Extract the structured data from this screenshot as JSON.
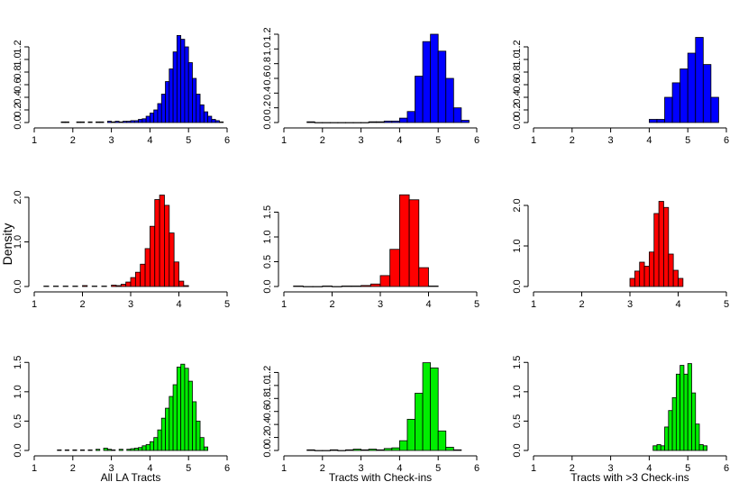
{
  "figure": {
    "ylabel": "Density",
    "column_xlabels": [
      "All LA Tracts",
      "Tracts with Check-ins",
      "Tracts with >3 Check-ins"
    ]
  },
  "chart_data": [
    {
      "type": "bar",
      "row": 1,
      "col": 1,
      "color": "#0000ff",
      "xlim": [
        1,
        6
      ],
      "xticks": [
        1,
        2,
        3,
        4,
        5,
        6
      ],
      "ylim": [
        0,
        1.4
      ],
      "yticks": [
        "0.0",
        "0.2",
        "0.4",
        "0.6",
        "0.8",
        "1.0",
        "1.2"
      ],
      "bin_width": 0.1,
      "x": [
        1.7,
        1.8,
        2.1,
        2.2,
        2.4,
        2.6,
        2.7,
        2.9,
        3.0,
        3.1,
        3.2,
        3.3,
        3.4,
        3.5,
        3.6,
        3.7,
        3.8,
        3.9,
        4.0,
        4.1,
        4.2,
        4.3,
        4.4,
        4.5,
        4.6,
        4.7,
        4.8,
        4.9,
        5.0,
        5.1,
        5.2,
        5.3,
        5.4,
        5.5,
        5.6,
        5.7,
        5.8
      ],
      "values": [
        0.01,
        0.01,
        0.01,
        0.01,
        0.01,
        0.01,
        0.01,
        0.02,
        0.01,
        0.02,
        0.01,
        0.02,
        0.02,
        0.03,
        0.03,
        0.05,
        0.06,
        0.1,
        0.15,
        0.2,
        0.3,
        0.45,
        0.65,
        0.85,
        1.12,
        1.38,
        1.32,
        1.2,
        0.95,
        0.7,
        0.45,
        0.28,
        0.17,
        0.1,
        0.05,
        0.03,
        0.01
      ]
    },
    {
      "type": "bar",
      "row": 1,
      "col": 2,
      "color": "#0000ff",
      "xlim": [
        1,
        6
      ],
      "xticks": [
        1,
        2,
        3,
        4,
        5,
        6
      ],
      "ylim": [
        0,
        1.2
      ],
      "yticks": [
        "0.0",
        "0.2",
        "0.4",
        "0.6",
        "0.8",
        "1.0",
        "1.2"
      ],
      "bin_width": 0.2,
      "x": [
        1.6,
        1.8,
        2.0,
        2.2,
        2.4,
        2.6,
        2.8,
        3.0,
        3.2,
        3.4,
        3.6,
        3.8,
        4.0,
        4.2,
        4.4,
        4.6,
        4.8,
        5.0,
        5.2,
        5.4,
        5.6
      ],
      "values": [
        0.01,
        0.0,
        0.0,
        0.0,
        0.0,
        0.0,
        0.0,
        0.0,
        0.01,
        0.01,
        0.02,
        0.02,
        0.06,
        0.15,
        0.63,
        1.1,
        1.2,
        0.97,
        0.6,
        0.2,
        0.03
      ]
    },
    {
      "type": "bar",
      "row": 1,
      "col": 3,
      "color": "#0000ff",
      "xlim": [
        1,
        6
      ],
      "xticks": [
        1,
        2,
        3,
        4,
        5,
        6
      ],
      "ylim": [
        0,
        1.4
      ],
      "yticks": [
        "0.0",
        "0.2",
        "0.4",
        "0.6",
        "0.8",
        "1.0",
        "1.2"
      ],
      "bin_width": 0.2,
      "x": [
        4.0,
        4.2,
        4.4,
        4.6,
        4.8,
        5.0,
        5.2,
        5.4,
        5.6
      ],
      "values": [
        0.05,
        0.05,
        0.4,
        0.63,
        0.85,
        1.1,
        1.35,
        0.92,
        0.4
      ]
    },
    {
      "type": "bar",
      "row": 2,
      "col": 1,
      "color": "#ff0000",
      "xlim": [
        1,
        5
      ],
      "xticks": [
        1,
        2,
        3,
        4,
        5
      ],
      "ylim": [
        0,
        2.0
      ],
      "yticks": [
        "0.0",
        "1.0",
        "2.0"
      ],
      "bin_width": 0.1,
      "x": [
        1.2,
        1.4,
        1.6,
        1.8,
        2.0,
        2.2,
        2.4,
        2.6,
        2.7,
        2.8,
        2.9,
        3.0,
        3.1,
        3.2,
        3.3,
        3.4,
        3.5,
        3.6,
        3.7,
        3.8,
        3.9,
        4.0,
        4.1
      ],
      "values": [
        0.01,
        0.01,
        0.01,
        0.01,
        0.02,
        0.01,
        0.01,
        0.03,
        0.02,
        0.05,
        0.1,
        0.2,
        0.32,
        0.5,
        0.85,
        1.35,
        1.95,
        2.05,
        1.82,
        1.2,
        0.55,
        0.12,
        0.02
      ]
    },
    {
      "type": "bar",
      "row": 2,
      "col": 2,
      "color": "#ff0000",
      "xlim": [
        1,
        5
      ],
      "xticks": [
        1,
        2,
        3,
        4,
        5
      ],
      "ylim": [
        0,
        1.8
      ],
      "yticks": [
        "0.0",
        "0.5",
        "1.0",
        "1.5"
      ],
      "bin_width": 0.2,
      "x": [
        1.2,
        1.4,
        1.6,
        1.8,
        2.0,
        2.2,
        2.4,
        2.6,
        2.8,
        3.0,
        3.2,
        3.4,
        3.6,
        3.8,
        4.0
      ],
      "values": [
        0.01,
        0.0,
        0.0,
        0.01,
        0.0,
        0.01,
        0.01,
        0.02,
        0.05,
        0.22,
        0.75,
        1.85,
        1.75,
        0.38,
        0.01
      ]
    },
    {
      "type": "bar",
      "row": 2,
      "col": 3,
      "color": "#ff0000",
      "xlim": [
        1,
        5
      ],
      "xticks": [
        1,
        2,
        3,
        4,
        5
      ],
      "ylim": [
        0,
        2.2
      ],
      "yticks": [
        "0.0",
        "1.0",
        "2.0"
      ],
      "bin_width": 0.1,
      "x": [
        3.0,
        3.1,
        3.2,
        3.3,
        3.4,
        3.5,
        3.6,
        3.7,
        3.8,
        3.9,
        4.0
      ],
      "values": [
        0.2,
        0.38,
        0.6,
        0.5,
        0.85,
        1.8,
        2.1,
        1.95,
        0.8,
        0.4,
        0.2
      ]
    },
    {
      "type": "bar",
      "row": 3,
      "col": 1,
      "color": "#00ee00",
      "xlim": [
        1,
        6
      ],
      "xticks": [
        1,
        2,
        3,
        4,
        5,
        6
      ],
      "ylim": [
        0,
        1.55
      ],
      "yticks": [
        "0.0",
        "0.5",
        "1.0",
        "1.5"
      ],
      "bin_width": 0.1,
      "x": [
        1.6,
        1.8,
        2.0,
        2.2,
        2.4,
        2.6,
        2.8,
        2.9,
        3.0,
        3.2,
        3.4,
        3.5,
        3.6,
        3.7,
        3.8,
        3.9,
        4.0,
        4.1,
        4.2,
        4.3,
        4.4,
        4.5,
        4.6,
        4.7,
        4.8,
        4.9,
        5.0,
        5.1,
        5.2,
        5.3,
        5.4
      ],
      "values": [
        0.01,
        0.01,
        0.01,
        0.01,
        0.01,
        0.02,
        0.04,
        0.02,
        0.01,
        0.02,
        0.02,
        0.03,
        0.04,
        0.05,
        0.08,
        0.1,
        0.15,
        0.22,
        0.35,
        0.55,
        0.72,
        0.92,
        1.12,
        1.42,
        1.47,
        1.4,
        1.18,
        0.83,
        0.5,
        0.22,
        0.06
      ]
    },
    {
      "type": "bar",
      "row": 3,
      "col": 2,
      "color": "#00ee00",
      "xlim": [
        1,
        6
      ],
      "xticks": [
        1,
        2,
        3,
        4,
        5,
        6
      ],
      "ylim": [
        0,
        1.4
      ],
      "yticks": [
        "0.0",
        "0.2",
        "0.4",
        "0.6",
        "0.8",
        "1.0",
        "1.2"
      ],
      "bin_width": 0.2,
      "x": [
        1.6,
        1.8,
        2.0,
        2.2,
        2.4,
        2.6,
        2.8,
        3.0,
        3.2,
        3.4,
        3.6,
        3.8,
        4.0,
        4.2,
        4.4,
        4.6,
        4.8,
        5.0,
        5.2,
        5.4
      ],
      "values": [
        0.01,
        0.0,
        0.0,
        0.01,
        0.0,
        0.01,
        0.02,
        0.01,
        0.02,
        0.01,
        0.03,
        0.04,
        0.15,
        0.48,
        0.88,
        1.35,
        1.27,
        0.3,
        0.05,
        0.01
      ]
    },
    {
      "type": "bar",
      "row": 3,
      "col": 3,
      "color": "#00ee00",
      "xlim": [
        1,
        6
      ],
      "xticks": [
        1,
        2,
        3,
        4,
        5,
        6
      ],
      "ylim": [
        0,
        1.55
      ],
      "yticks": [
        "0.0",
        "0.5",
        "1.0",
        "1.5"
      ],
      "bin_width": 0.1,
      "x": [
        4.1,
        4.2,
        4.3,
        4.4,
        4.5,
        4.6,
        4.7,
        4.8,
        4.9,
        5.0,
        5.1,
        5.2,
        5.3,
        5.4
      ],
      "values": [
        0.08,
        0.1,
        0.08,
        0.4,
        0.68,
        0.9,
        1.3,
        1.45,
        1.3,
        1.48,
        0.98,
        0.45,
        0.1,
        0.08
      ]
    }
  ]
}
